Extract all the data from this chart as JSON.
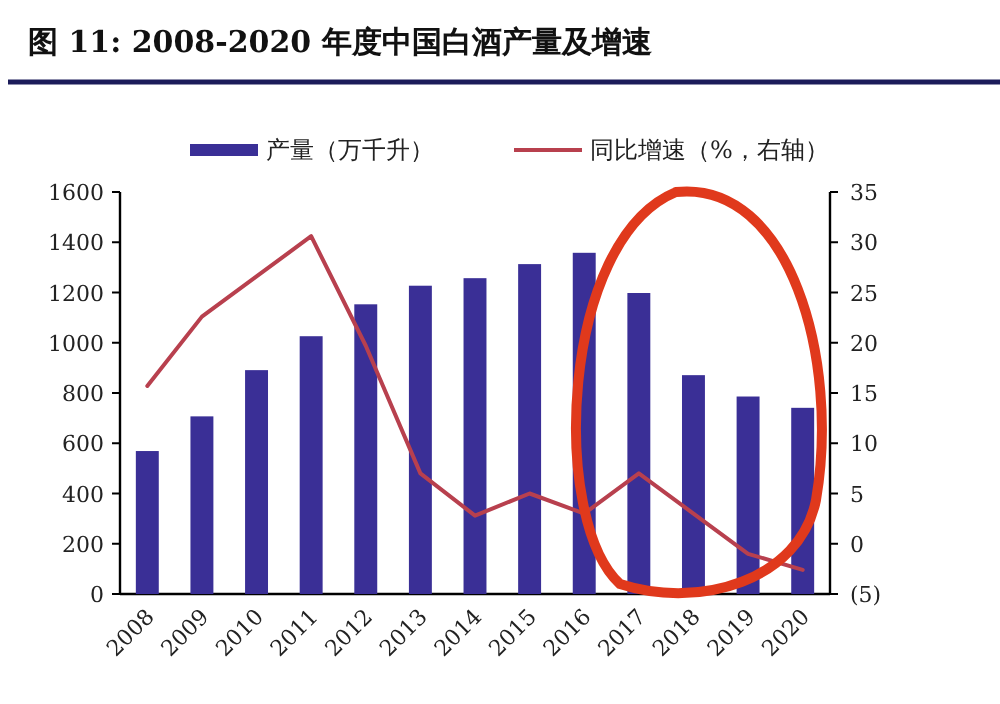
{
  "chart_data": {
    "type": "bar",
    "title": "图 11:  2008-2020 年度中国白酒产量及增速",
    "categories": [
      "2008",
      "2009",
      "2010",
      "2011",
      "2012",
      "2013",
      "2014",
      "2015",
      "2016",
      "2017",
      "2018",
      "2019",
      "2020"
    ],
    "series": [
      {
        "name": "产量（万千升）",
        "color": "#3a2f96",
        "values": [
          569,
          707,
          891,
          1026,
          1153,
          1227,
          1257,
          1313,
          1358,
          1198,
          871,
          786,
          741
        ]
      },
      {
        "name": "同比增速（%，右轴）",
        "type": "line",
        "axis": "y2",
        "color": "#b8404e",
        "values": [
          15.7,
          22.6,
          26.6,
          30.6,
          19.7,
          7,
          2.8,
          5,
          3,
          7,
          3,
          -1,
          -2.6
        ]
      }
    ],
    "ylim": [
      0,
      1600
    ],
    "yticks": [
      0,
      200,
      400,
      600,
      800,
      1000,
      1200,
      1400,
      1600
    ],
    "y2lim": [
      -5,
      35
    ],
    "y2ticks": [
      {
        "value": -5,
        "label": "(5)"
      },
      0,
      5,
      10,
      15,
      20,
      25,
      30,
      35
    ],
    "legend": "top",
    "grid": false
  }
}
